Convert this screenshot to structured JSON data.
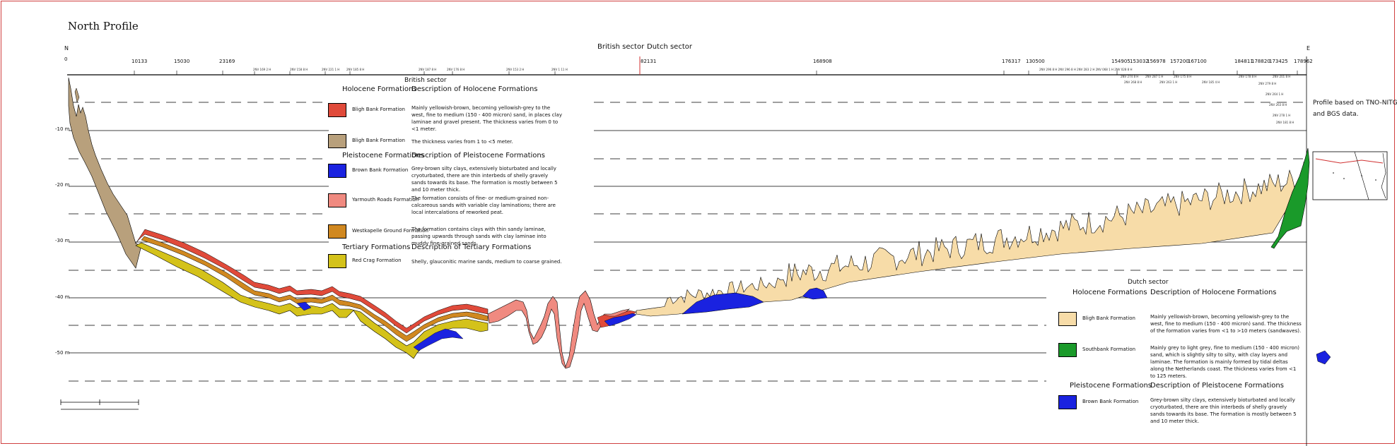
{
  "title": "North Profile",
  "edge_left_top": "N",
  "edge_left_bottom": "0",
  "edge_right": "E",
  "sector_labels": {
    "british": "British sector",
    "dutch": "Dutch sector"
  },
  "top_numbers": [
    "10133",
    "15030",
    "23169",
    "82131",
    "168908",
    "176317",
    "130500",
    "154905",
    "153032",
    "156978",
    "157200",
    "167100",
    "184811",
    "178820",
    "173425",
    "178962"
  ],
  "depth_labels": [
    "-10 m",
    "-20 m",
    "-30 m",
    "-40 m",
    "-50 m"
  ],
  "profile_note_line1": "Profile based on TNO-NITG",
  "profile_note_line2": "and BGS data.",
  "british_legend": {
    "heading": "British sector",
    "holocene_header": "Holocene Formations",
    "holocene_desc_header": "Description of Holocene Formations",
    "pleistocene_header": "Pleistocene Formations",
    "pleistocene_desc_header": "Description of Pleistocene Formations",
    "tertiary_header": "Tertiary Formations",
    "tertiary_desc_header": "Description of Tertiary Formations",
    "items": [
      {
        "name": "Bligh Bank Formation",
        "desc": "Mainly yellowish-brown, becoming yellowish-grey to the west, fine to medium (150 - 400 micron) sand, in places clay laminae and gravel present. The thickness varies from 0 to <1 meter.",
        "color": "#e04a3a"
      },
      {
        "name": "Bligh Bank Formation",
        "desc": "The thickness varies from 1 to <5 meter.",
        "color": "#b8a07c"
      },
      {
        "name": "Brown Bank Formation",
        "desc": "Grey-brown silty clays, extensively bioturbated and locally cryoturbated, there are thin interbeds of shelly gravely sands towards its base. The formation is mostly between 5 and 10 meter thick.",
        "color": "#1a22e0"
      },
      {
        "name": "Yarmouth Roads Formation",
        "desc": "The formation consists of fine- or medium-grained non-calcareous sands with variable clay laminations; there are local intercalations of reworked peat.",
        "color": "#f08a80"
      },
      {
        "name": "Westkapelle Ground Formation",
        "desc": "The formation contains clays with thin sandy laminae, passing upwards through sands with clay laminae into muddy fine-grained sands.",
        "color": "#d08820"
      },
      {
        "name": "Red Crag Formation",
        "desc": "Shelly, glauconitic marine sands, medium to coarse grained.",
        "color": "#d4c21a"
      }
    ]
  },
  "dutch_legend": {
    "heading": "Dutch sector",
    "holocene_header": "Holocene Formations",
    "holocene_desc_header": "Description of Holocene Formations",
    "pleistocene_header": "Pleistocene Formations",
    "pleistocene_desc_header": "Description of Pleistocene Formations",
    "items": [
      {
        "name": "Bligh Bank Formation",
        "desc": "Mainly yellowish-brown, becoming yellowish-grey to the west, fine to medium (150 - 400 micron) sand. The thickness of the formation varies from <1 to >10 meters (sandwaves).",
        "color": "#f7dca8"
      },
      {
        "name": "Southbank Formation",
        "desc": "Mainly grey to light grey, fine to medium (150 - 400 micron) sand, which is slightly silty to silty, with clay layers and laminae. The formation is mainly formed by tidal deltas along the Netherlands coast. The thickness varies from <1 to 125 meters.",
        "color": "#1a9a2a"
      },
      {
        "name": "Brown Bank Formation",
        "desc": "Grey-brown silty clays, extensively bioturbated and locally cryoturbated, there are thin interbeds of shelly gravely sands towards its base. The formation is mostly between 5 and 10 meter thick.",
        "color": "#1a22e0"
      }
    ]
  },
  "colors": {
    "frame": "#d04040",
    "sector_line": "#d03030"
  }
}
